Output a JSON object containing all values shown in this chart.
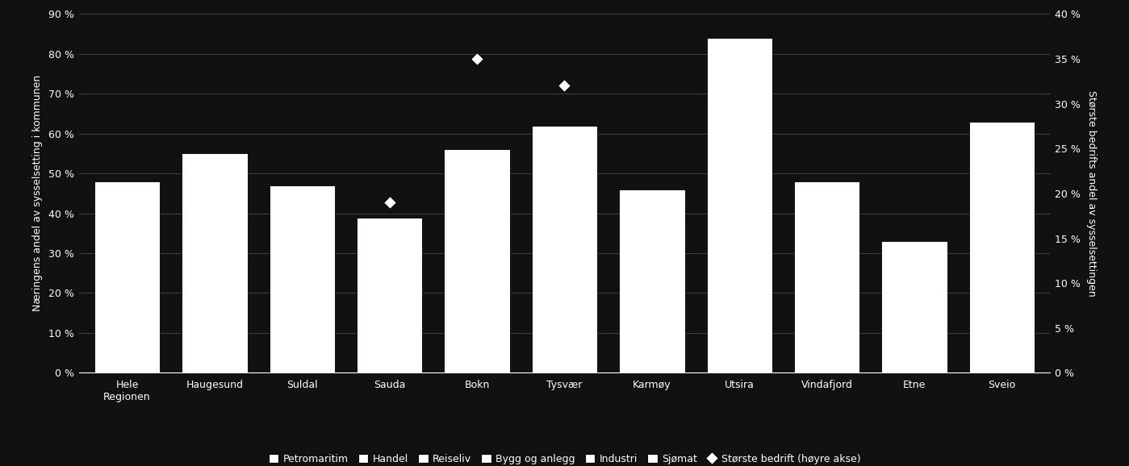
{
  "categories": [
    "Hele\nRegionen",
    "Haugesund",
    "Suldal",
    "Sauda",
    "Bokn",
    "Tysvær",
    "Karmøy",
    "Utsira",
    "Vindafjord",
    "Etne",
    "Sveio"
  ],
  "bar_values": [
    48,
    55,
    47,
    39,
    56,
    62,
    46,
    84,
    48,
    33,
    63
  ],
  "dot_values_right_axis": [
    null,
    null,
    null,
    19,
    35,
    32,
    null,
    null,
    null,
    null,
    null
  ],
  "ylim_left": [
    0,
    90
  ],
  "ylim_right": [
    0,
    40
  ],
  "yticks_left": [
    0,
    10,
    20,
    30,
    40,
    50,
    60,
    70,
    80,
    90
  ],
  "yticks_right": [
    0,
    5,
    10,
    15,
    20,
    25,
    30,
    35,
    40
  ],
  "ylabel_left": "Næringens andel av sysselsetting i kommunen",
  "ylabel_right": "Største bedrifts andel av sysselsettingen",
  "bar_color": "#ffffff",
  "bar_edgecolor": "#000000",
  "dot_color": "#ffffff",
  "dot_edgecolor": "#000000",
  "background_color": "#111111",
  "text_color": "#ffffff",
  "grid_color": "#555555",
  "legend_labels": [
    "Petromaritim",
    "Handel",
    "Reiseliv",
    "Bygg og anlegg",
    "Industri",
    "Sjømat",
    "Største bedrift (høyre akse)"
  ],
  "bar_width": 0.75,
  "axis_fontsize": 9,
  "tick_fontsize": 9,
  "legend_fontsize": 9
}
